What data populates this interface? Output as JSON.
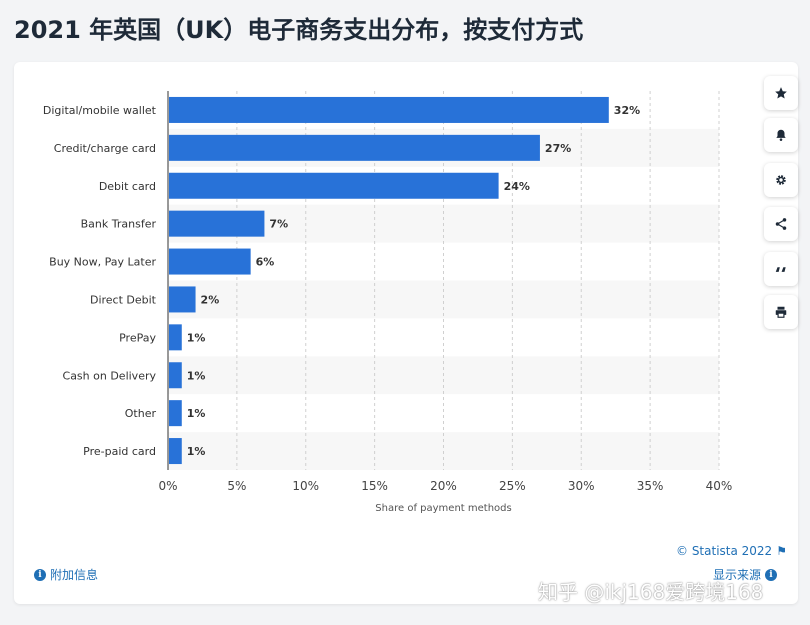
{
  "page_title": "2021 年英国（UK）电子商务支出分布，按支付方式",
  "chart_data": {
    "type": "bar",
    "orientation": "horizontal",
    "categories": [
      "Digital/mobile wallet",
      "Credit/charge card",
      "Debit card",
      "Bank Transfer",
      "Buy Now, Pay Later",
      "Direct Debit",
      "PrePay",
      "Cash on Delivery",
      "Other",
      "Pre-paid card"
    ],
    "values": [
      32,
      27,
      24,
      7,
      6,
      2,
      1,
      1,
      1,
      1
    ],
    "value_labels": [
      "32%",
      "27%",
      "24%",
      "7%",
      "6%",
      "2%",
      "1%",
      "1%",
      "1%",
      "1%"
    ],
    "xlabel": "Share of payment methods",
    "ylabel": "",
    "xlim": [
      0,
      40
    ],
    "x_ticks": [
      0,
      5,
      10,
      15,
      20,
      25,
      30,
      35,
      40
    ],
    "x_tick_labels": [
      "0%",
      "5%",
      "10%",
      "15%",
      "20%",
      "25%",
      "30%",
      "35%",
      "40%"
    ],
    "grid": "vertical dashed",
    "bar_color": "#2872d8",
    "alt_row_color": "#f7f7f7"
  },
  "sidebar_tools": [
    {
      "icon": "star-icon",
      "name": "favorite-button"
    },
    {
      "icon": "bell-icon",
      "name": "notification-button"
    },
    {
      "icon": "gear-icon",
      "name": "settings-button"
    },
    {
      "icon": "share-icon",
      "name": "share-button"
    },
    {
      "icon": "quote-icon",
      "name": "cite-button"
    },
    {
      "icon": "print-icon",
      "name": "print-button"
    }
  ],
  "footer": {
    "credit": "© Statista 2022",
    "additional_info": "附加信息",
    "show_source": "显示来源"
  },
  "watermark": "知乎 @ikj168爱跨境168",
  "colors": {
    "accent": "#1f6fb5",
    "title": "#1e2a38",
    "bar": "#2872d8"
  }
}
